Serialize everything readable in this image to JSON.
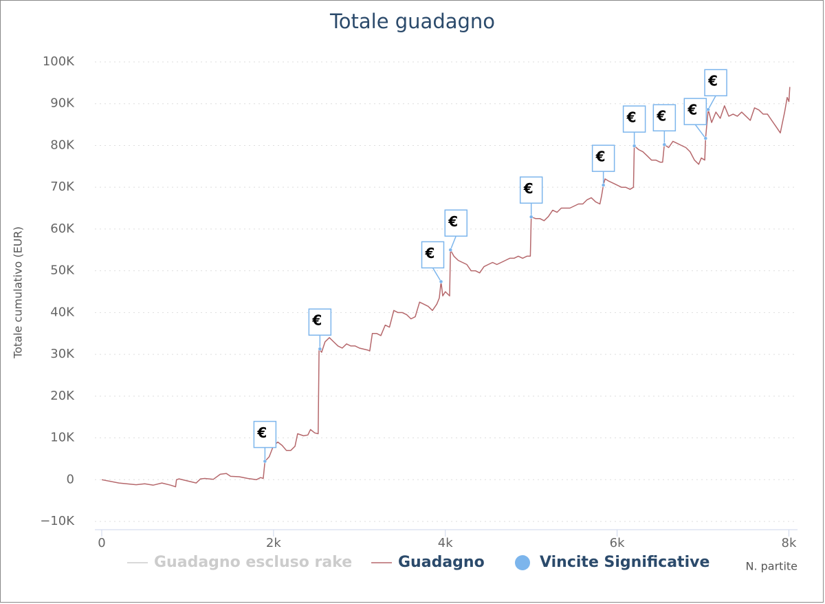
{
  "chart_data": {
    "type": "line",
    "title": "Totale guadagno",
    "y_label": "Totale cumulativo (EUR)",
    "x_label": "N. partite",
    "xlim": [
      -80,
      8100
    ],
    "ylim": [
      -10000,
      100000
    ],
    "xticks": [
      0,
      {
        "value": 2000,
        "label": "2k"
      },
      {
        "value": 4000,
        "label": "4k"
      },
      {
        "value": 6000,
        "label": "6k"
      },
      {
        "value": 8000,
        "label": "8k"
      }
    ],
    "yticks": [
      {
        "value": -10000,
        "label": "−10K"
      },
      0,
      {
        "value": 10000,
        "label": "10K"
      },
      {
        "value": 20000,
        "label": "20K"
      },
      {
        "value": 30000,
        "label": "30K"
      },
      {
        "value": 40000,
        "label": "40K"
      },
      {
        "value": 50000,
        "label": "50K"
      },
      {
        "value": 60000,
        "label": "60K"
      },
      {
        "value": 70000,
        "label": "70K"
      },
      {
        "value": 80000,
        "label": "80K"
      },
      {
        "value": 90000,
        "label": "90K"
      },
      {
        "value": 100000,
        "label": "100K"
      }
    ],
    "grid": true,
    "series": [
      {
        "name": "Guadagno escluso rake",
        "color": "#cccccc",
        "visible": false
      },
      {
        "name": "Guadagno",
        "color": "#b5676b",
        "x": [
          0,
          200,
          400,
          500,
          600,
          700,
          800,
          860,
          870,
          900,
          1000,
          1100,
          1150,
          1200,
          1300,
          1380,
          1450,
          1500,
          1600,
          1700,
          1800,
          1850,
          1880,
          1900,
          1950,
          2000,
          2050,
          2100,
          2150,
          2200,
          2250,
          2280,
          2350,
          2400,
          2430,
          2480,
          2520,
          2530,
          2560,
          2600,
          2650,
          2700,
          2750,
          2800,
          2850,
          2900,
          2950,
          3000,
          3100,
          3120,
          3150,
          3200,
          3250,
          3300,
          3350,
          3400,
          3450,
          3500,
          3550,
          3600,
          3650,
          3700,
          3750,
          3800,
          3850,
          3900,
          3930,
          3950,
          3970,
          4000,
          4050,
          4060,
          4100,
          4150,
          4200,
          4250,
          4300,
          4350,
          4400,
          4450,
          4500,
          4550,
          4600,
          4650,
          4700,
          4750,
          4800,
          4850,
          4900,
          4950,
          4990,
          5000,
          5050,
          5100,
          5150,
          5200,
          5250,
          5300,
          5350,
          5400,
          5450,
          5500,
          5550,
          5600,
          5650,
          5700,
          5750,
          5800,
          5820,
          5840,
          5860,
          5900,
          5950,
          6000,
          6050,
          6100,
          6150,
          6190,
          6200,
          6250,
          6300,
          6350,
          6400,
          6450,
          6500,
          6530,
          6550,
          6600,
          6650,
          6700,
          6750,
          6800,
          6850,
          6900,
          6950,
          6980,
          7020,
          7030,
          7060,
          7100,
          7150,
          7200,
          7250,
          7300,
          7350,
          7400,
          7450,
          7500,
          7550,
          7600,
          7650,
          7700,
          7750,
          7800,
          7850,
          7900,
          7920,
          7950,
          7980,
          8000,
          8010
        ],
        "values": [
          0,
          -800,
          -1200,
          -1000,
          -1300,
          -800,
          -1300,
          -1700,
          0,
          200,
          -300,
          -800,
          200,
          300,
          100,
          1300,
          1500,
          800,
          700,
          300,
          0,
          500,
          300,
          4400,
          5500,
          8200,
          9000,
          8200,
          7000,
          7000,
          8000,
          11000,
          10500,
          10700,
          12000,
          11200,
          11000,
          31300,
          30500,
          33000,
          34000,
          33000,
          32000,
          31500,
          32500,
          32000,
          32000,
          31500,
          31000,
          30800,
          35000,
          35000,
          34500,
          37000,
          36500,
          40500,
          40000,
          40000,
          39500,
          38500,
          39000,
          42500,
          42000,
          41500,
          40500,
          42000,
          43500,
          47400,
          44000,
          45000,
          44000,
          55000,
          53500,
          52500,
          52000,
          51500,
          50000,
          50000,
          49500,
          51000,
          51500,
          52000,
          51500,
          52000,
          52500,
          53000,
          53000,
          53500,
          53000,
          53500,
          53500,
          62900,
          62500,
          62500,
          62000,
          63000,
          64500,
          64000,
          65000,
          65000,
          65000,
          65500,
          66000,
          66000,
          67000,
          67500,
          66500,
          66000,
          68000,
          70500,
          72000,
          71500,
          71000,
          70500,
          70000,
          70000,
          69500,
          70000,
          79900,
          79000,
          78500,
          77500,
          76500,
          76500,
          76000,
          76000,
          80200,
          79500,
          81000,
          80500,
          80000,
          79500,
          78500,
          76500,
          75500,
          77000,
          76500,
          81700,
          88600,
          85500,
          88000,
          86500,
          89500,
          87000,
          87500,
          87000,
          88000,
          87000,
          86000,
          89000,
          88500,
          87500,
          87500,
          86000,
          84500,
          83000,
          85000,
          88000,
          91500,
          90500,
          94000
        ]
      },
      {
        "name": "Vincite Significative",
        "type": "flags",
        "color": "#7cb5ec",
        "x": [
          1900,
          2540,
          3950,
          4060,
          5000,
          5840,
          6200,
          6550,
          7030,
          7060
        ],
        "values": [
          4400,
          31300,
          47400,
          55000,
          62900,
          70500,
          79900,
          80200,
          81700,
          88600
        ],
        "labels": [
          "€",
          "€",
          "€",
          "€",
          "€",
          "€",
          "€",
          "€",
          "€",
          "€"
        ]
      }
    ]
  }
}
